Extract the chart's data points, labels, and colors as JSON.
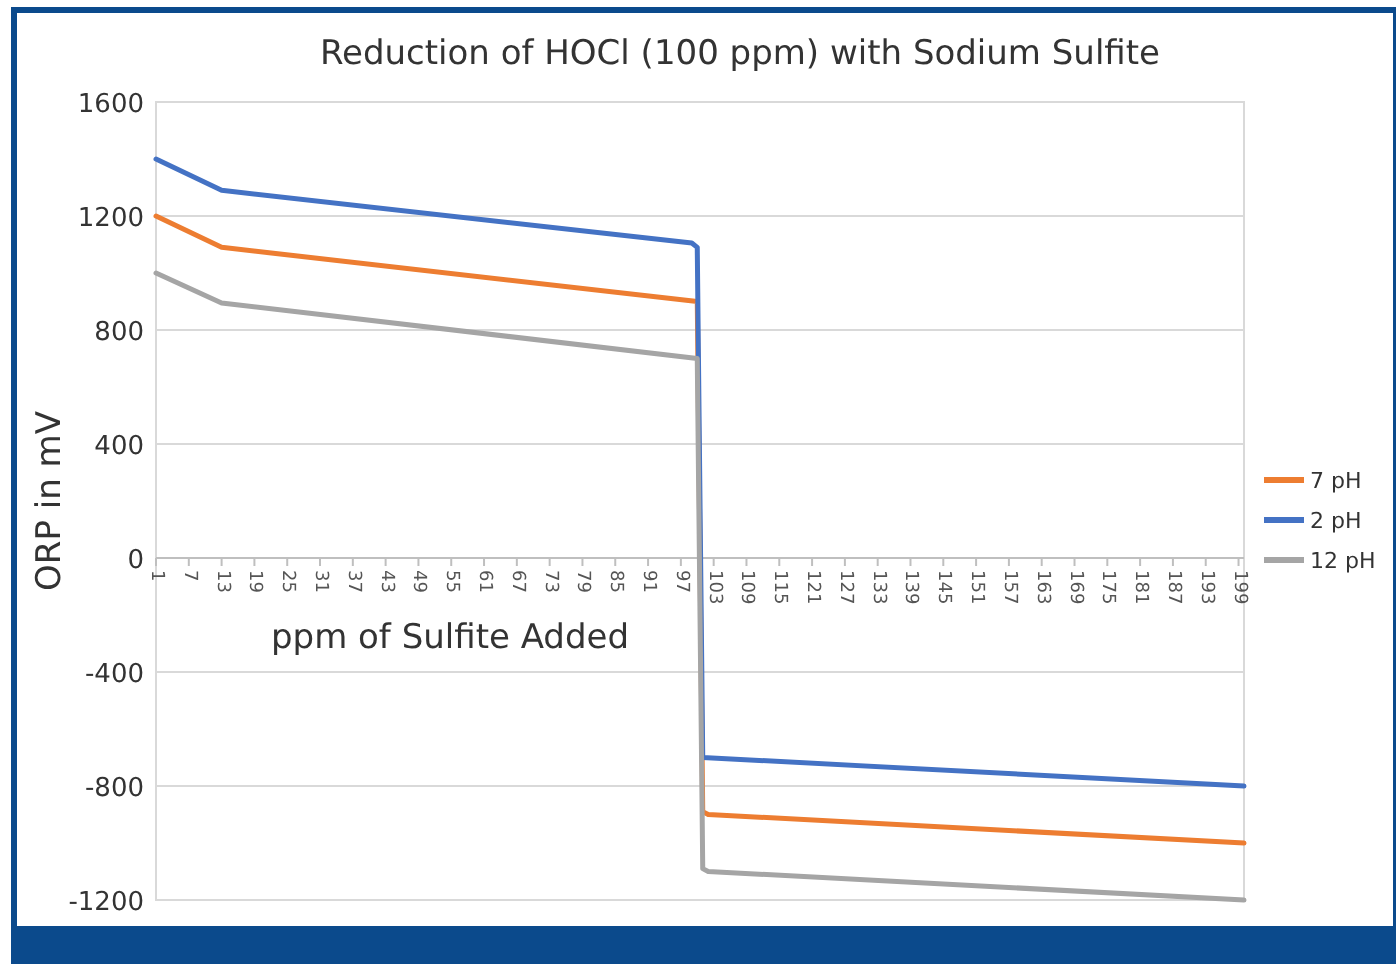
{
  "chart_data": {
    "type": "line",
    "title": "Reduction of HOCl (100 ppm) with Sodium Sulfite",
    "xlabel": "ppm of Sulfite Added",
    "ylabel": "ORP in mV",
    "xlim": [
      1,
      200
    ],
    "xticks": [
      1,
      7,
      13,
      19,
      25,
      31,
      37,
      43,
      49,
      55,
      61,
      67,
      73,
      79,
      85,
      91,
      97,
      103,
      109,
      115,
      121,
      127,
      133,
      139,
      145,
      151,
      157,
      163,
      169,
      175,
      181,
      187,
      193,
      199
    ],
    "ylim": [
      -1200,
      1600
    ],
    "yticks": [
      -1200,
      -800,
      -400,
      0,
      400,
      800,
      1200,
      1600
    ],
    "grid": "y",
    "legend": "right",
    "marker": "none",
    "line_style": "solid",
    "series": [
      {
        "name": "7 pH",
        "color": "#ed7d31",
        "x": [
          1,
          13,
          100,
          101,
          102,
          200
        ],
        "values": [
          1200,
          1090,
          900,
          -890,
          -900,
          -1000
        ]
      },
      {
        "name": "2 pH",
        "color": "#4472c4",
        "x": [
          1,
          13,
          99,
          100,
          101,
          200
        ],
        "values": [
          1400,
          1290,
          1105,
          1090,
          -700,
          -800
        ]
      },
      {
        "name": "12 pH",
        "color": "#a5a5a5",
        "x": [
          1,
          13,
          100,
          101,
          102,
          200
        ],
        "values": [
          1000,
          895,
          700,
          -1090,
          -1100,
          -1200
        ]
      }
    ]
  }
}
